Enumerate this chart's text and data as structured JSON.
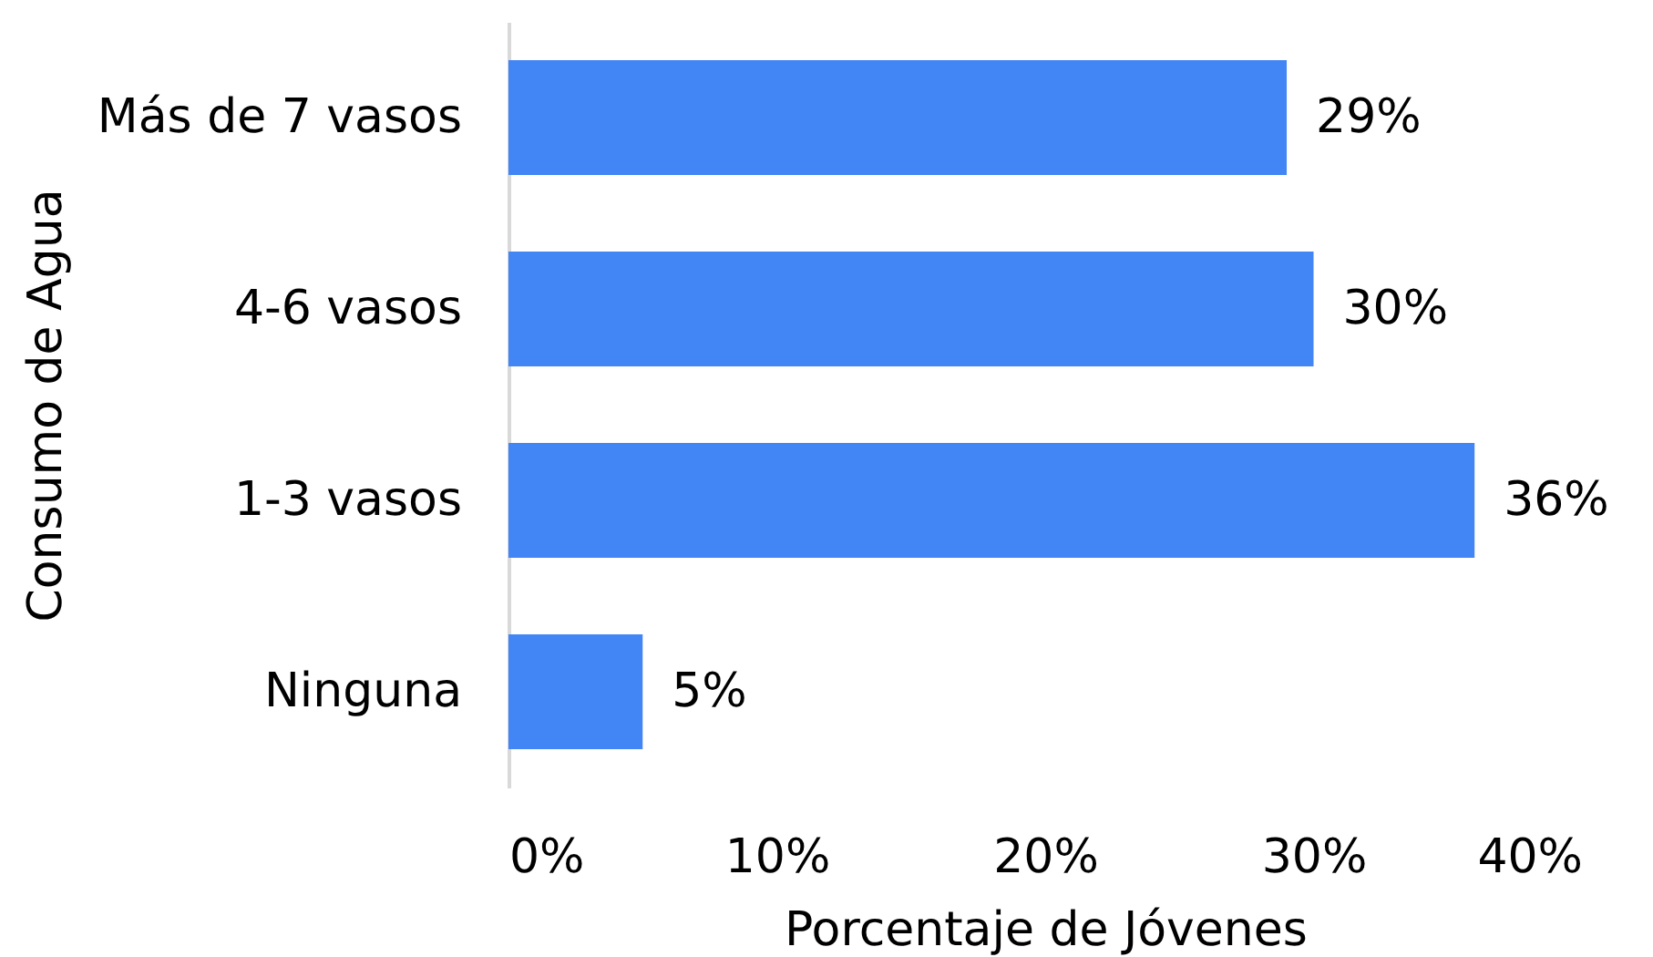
{
  "chart_data": {
    "type": "bar",
    "orientation": "horizontal",
    "categories": [
      "Más de 7 vasos",
      "4-6 vasos",
      "1-3 vasos",
      "Ninguna"
    ],
    "values": [
      29,
      30,
      36,
      5
    ],
    "value_labels": [
      "29%",
      "30%",
      "36%",
      "5%"
    ],
    "color": "#4285f4",
    "xlabel": "Porcentaje de Jóvenes",
    "ylabel": "Consumo de Agua",
    "xlim": [
      0,
      40
    ],
    "xticks": [
      {
        "value": 0,
        "label": "0%"
      },
      {
        "value": 10,
        "label": "10%"
      },
      {
        "value": 20,
        "label": "20%"
      },
      {
        "value": 30,
        "label": "30%"
      },
      {
        "value": 40,
        "label": "40%"
      }
    ]
  }
}
